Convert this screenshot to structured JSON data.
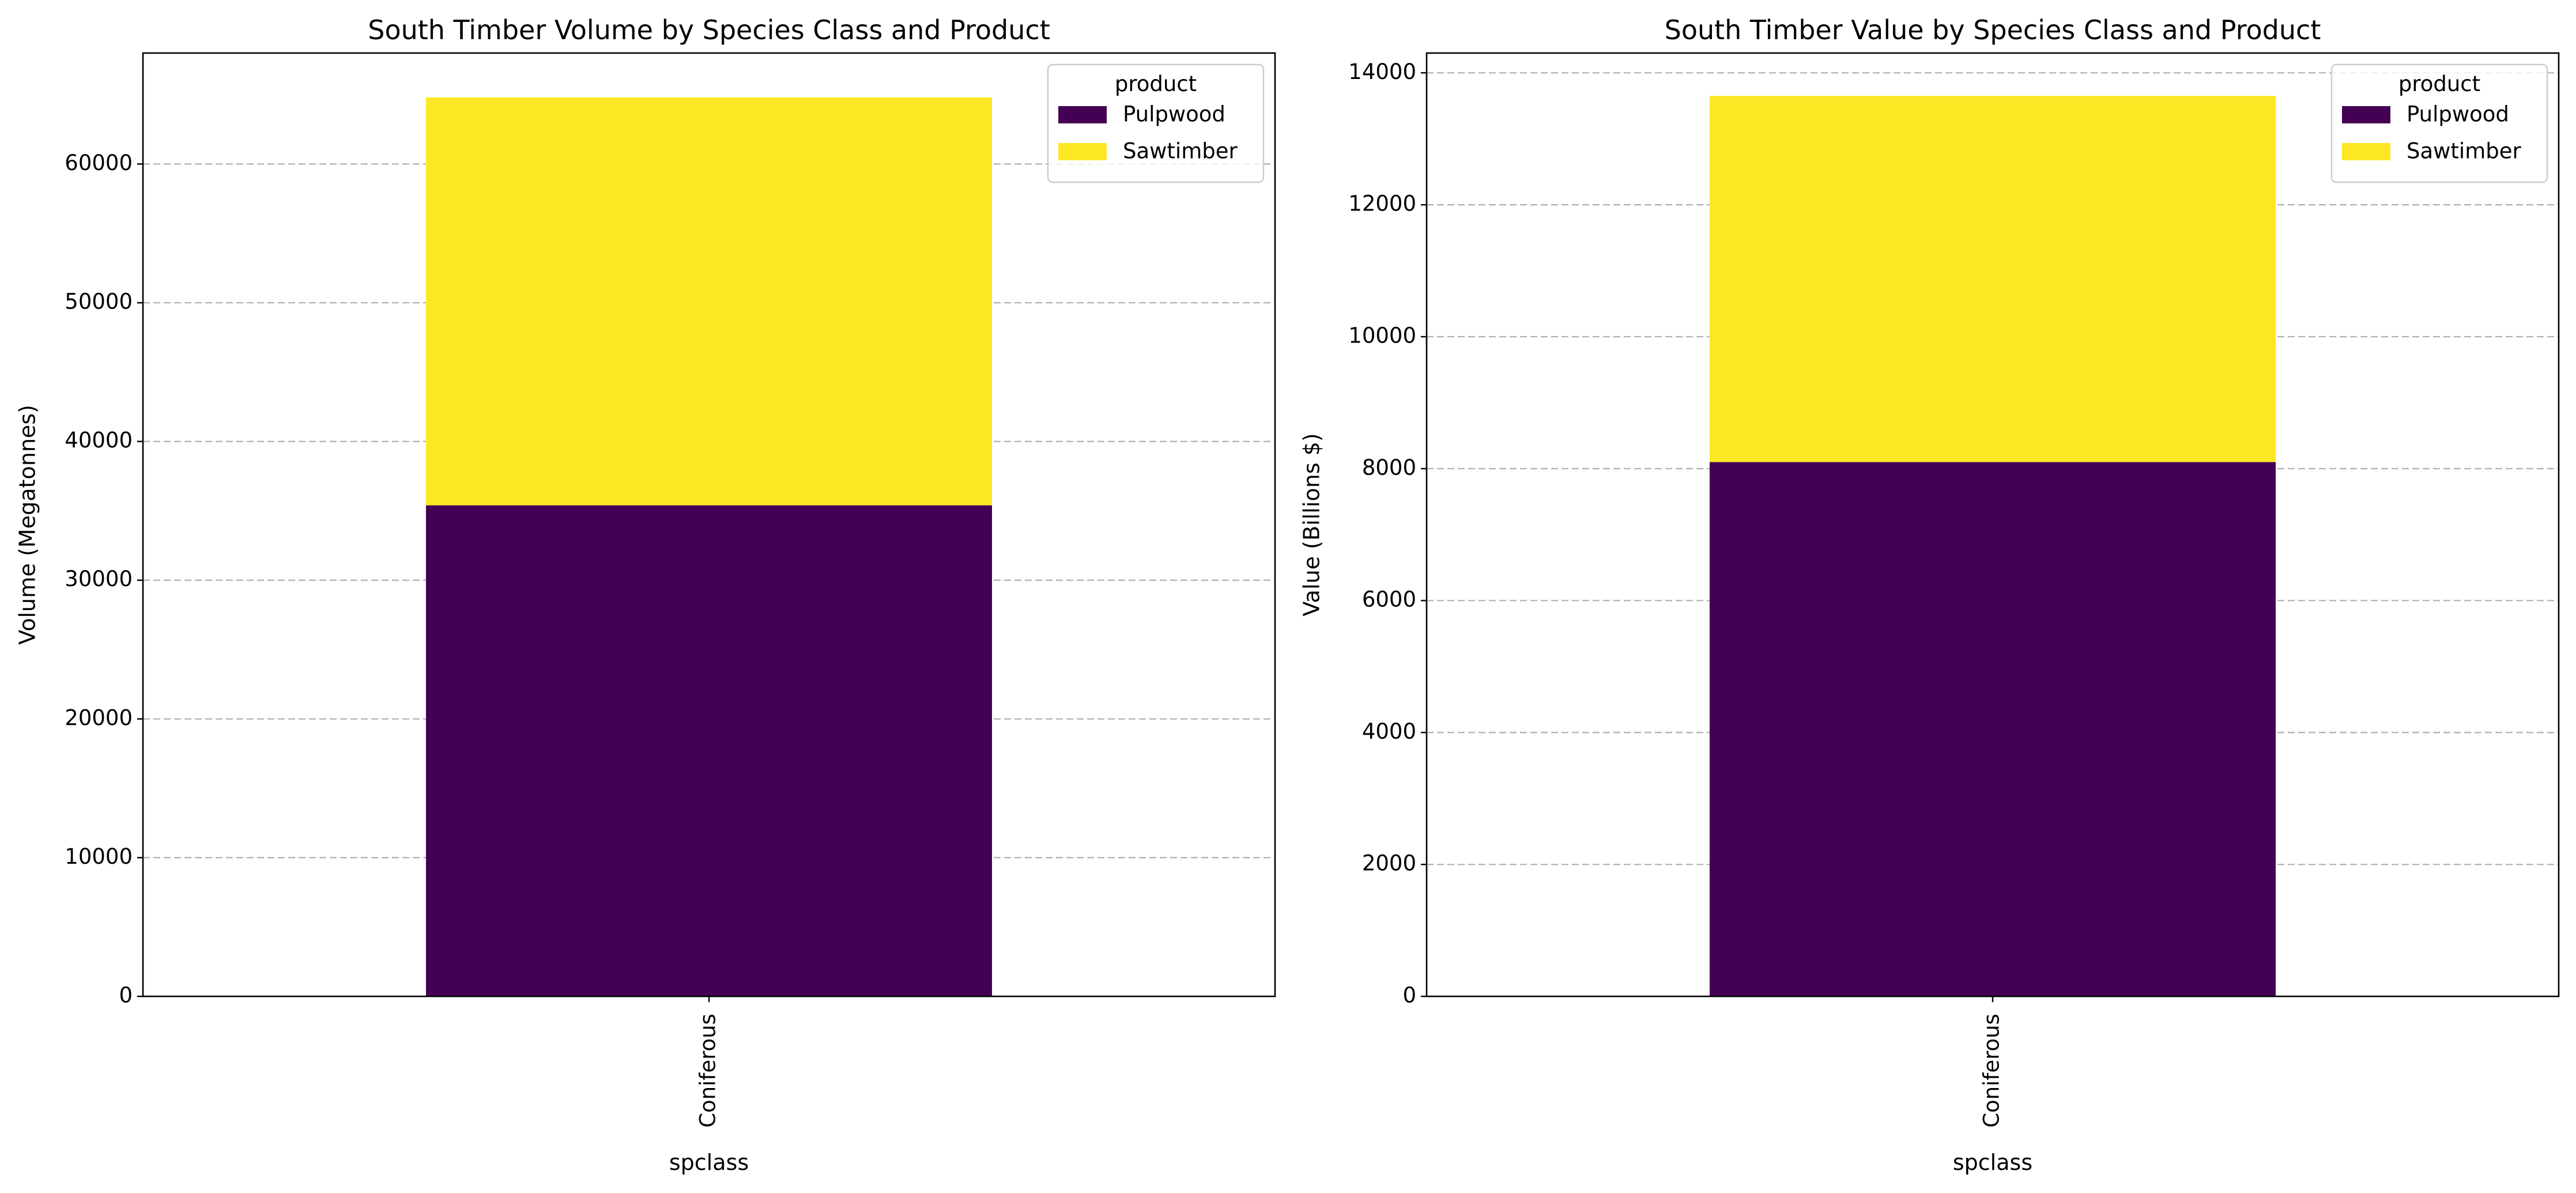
{
  "chart_data": [
    {
      "type": "bar",
      "stacked": true,
      "title": "South Timber Volume by Species Class and Product",
      "xlabel": "spclass",
      "ylabel": "Volume (Megatonnes)",
      "categories": [
        "Coniferous"
      ],
      "series": [
        {
          "name": "Pulpwood",
          "values": [
            35400
          ],
          "color": "#440154"
        },
        {
          "name": "Sawtimber",
          "values": [
            29400
          ],
          "color": "#fde725"
        }
      ],
      "ylim": [
        0,
        68000
      ],
      "yticks": [
        0,
        10000,
        20000,
        30000,
        40000,
        50000,
        60000
      ],
      "ytick_labels": [
        "0",
        "10000",
        "20000",
        "30000",
        "40000",
        "50000",
        "60000"
      ],
      "grid": "y, dashed",
      "legend": {
        "title": "product",
        "placement": "top-right"
      }
    },
    {
      "type": "bar",
      "stacked": true,
      "title": "South Timber Value by Species Class and Product",
      "xlabel": "spclass",
      "ylabel": "Value (Billions $)",
      "categories": [
        "Coniferous"
      ],
      "series": [
        {
          "name": "Pulpwood",
          "values": [
            8100
          ],
          "color": "#440154"
        },
        {
          "name": "Sawtimber",
          "values": [
            5550
          ],
          "color": "#fde725"
        }
      ],
      "ylim": [
        0,
        14300
      ],
      "yticks": [
        0,
        2000,
        4000,
        6000,
        8000,
        10000,
        12000,
        14000
      ],
      "ytick_labels": [
        "0",
        "2000",
        "4000",
        "6000",
        "8000",
        "10000",
        "12000",
        "14000"
      ],
      "grid": "y, dashed",
      "legend": {
        "title": "product",
        "placement": "top-right"
      }
    }
  ]
}
